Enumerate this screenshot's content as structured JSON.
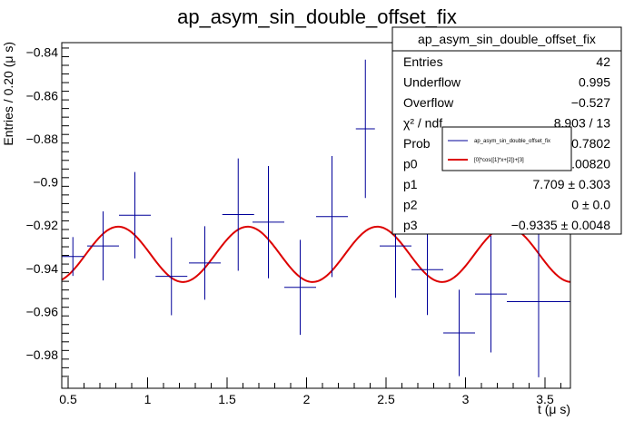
{
  "chart_data": {
    "type": "scatter",
    "title": "ap_asym_sin_double_offset_fix",
    "xlabel": "t (μ s)",
    "ylabel": "Entries / 0.20 (μ s)",
    "xlim": [
      0.46,
      3.66
    ],
    "ylim": [
      -0.9955,
      -0.8355
    ],
    "x_ticks": [
      {
        "value": 0.5,
        "label": "0.5"
      },
      {
        "value": 1,
        "label": "1"
      },
      {
        "value": 1.5,
        "label": "1.5"
      },
      {
        "value": 2,
        "label": "2"
      },
      {
        "value": 2.5,
        "label": "2.5"
      },
      {
        "value": 3,
        "label": "3"
      },
      {
        "value": 3.5,
        "label": "3.5"
      }
    ],
    "y_ticks": [
      {
        "value": -0.84,
        "label": "−0.84"
      },
      {
        "value": -0.86,
        "label": "−0.86"
      },
      {
        "value": -0.88,
        "label": "−0.88"
      },
      {
        "value": -0.9,
        "label": "−0.9"
      },
      {
        "value": -0.92,
        "label": "−0.92"
      },
      {
        "value": -0.94,
        "label": "−0.94"
      },
      {
        "value": -0.96,
        "label": "−0.96"
      },
      {
        "value": -0.98,
        "label": "−0.98"
      }
    ],
    "grid": false,
    "series": [
      {
        "name": "ap_asym_sin_double_offset_fix",
        "kind": "points_with_errors",
        "color": "#000099",
        "points": [
          {
            "x": 0.53,
            "y": -0.9345,
            "xerr": 0.07,
            "yerr": 0.009
          },
          {
            "x": 0.72,
            "y": -0.9296,
            "xerr": 0.1,
            "yerr": 0.016
          },
          {
            "x": 0.92,
            "y": -0.9154,
            "xerr": 0.1,
            "yerr": 0.02
          },
          {
            "x": 1.15,
            "y": -0.9437,
            "xerr": 0.1,
            "yerr": 0.018
          },
          {
            "x": 1.36,
            "y": -0.9375,
            "xerr": 0.1,
            "yerr": 0.017
          },
          {
            "x": 1.57,
            "y": -0.9151,
            "xerr": 0.1,
            "yerr": 0.026
          },
          {
            "x": 1.76,
            "y": -0.9186,
            "xerr": 0.1,
            "yerr": 0.026
          },
          {
            "x": 1.96,
            "y": -0.9488,
            "xerr": 0.1,
            "yerr": 0.022
          },
          {
            "x": 2.16,
            "y": -0.916,
            "xerr": 0.1,
            "yerr": 0.028
          },
          {
            "x": 2.37,
            "y": -0.8754,
            "xerr": 0.06,
            "yerr": 0.032
          },
          {
            "x": 2.56,
            "y": -0.9296,
            "xerr": 0.1,
            "yerr": 0.024
          },
          {
            "x": 2.76,
            "y": -0.9406,
            "xerr": 0.1,
            "yerr": 0.021
          },
          {
            "x": 2.96,
            "y": -0.9699,
            "xerr": 0.1,
            "yerr": 0.02
          },
          {
            "x": 3.16,
            "y": -0.9519,
            "xerr": 0.1,
            "yerr": 0.027
          },
          {
            "x": 3.46,
            "y": -0.9554,
            "xerr": 0.2,
            "yerr": 0.035
          }
        ]
      },
      {
        "name": "[0]*cos([1]*x+[2])+[3]",
        "kind": "function",
        "color": "#dd0000",
        "function": "p0*cos(p1*x+p2)+p3",
        "params": {
          "p0": 0.0128,
          "p1": 7.709,
          "p2": 0.0,
          "p3": -0.9335
        },
        "x_range": [
          0.46,
          3.66
        ]
      }
    ],
    "stats_box": {
      "title": "ap_asym_sin_double_offset_fix",
      "rows": [
        {
          "label": "Entries",
          "value": "42"
        },
        {
          "label": "Underflow",
          "value": "0.995"
        },
        {
          "label": "Overflow",
          "value": "−0.527"
        },
        {
          "label": "χ² / ndf",
          "value": "8.903 / 13"
        },
        {
          "label": "Prob",
          "value": "0.7802"
        },
        {
          "label": "p0",
          "value": "0.01280 ± 0.00820"
        },
        {
          "label": "p1",
          "value": "7.709 ± 0.303"
        },
        {
          "label": "p2",
          "value": "0 ± 0.0"
        },
        {
          "label": "p3",
          "value": "−0.9335 ± 0.0048"
        }
      ]
    },
    "legend": {
      "placement": "top-right, overlapping stats box",
      "entries": [
        {
          "label": "ap_asym_sin_double_offset_fix",
          "color": "#000099"
        },
        {
          "label": "[0]*cos([1]*x+[2])+[3]",
          "color": "#dd0000"
        }
      ]
    }
  }
}
